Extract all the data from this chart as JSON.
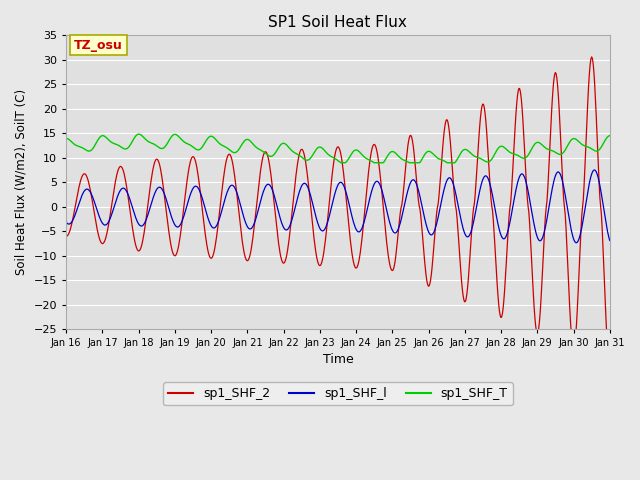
{
  "title": "SP1 Soil Heat Flux",
  "xlabel": "Time",
  "ylabel": "Soil Heat Flux (W/m2), SoilT (C)",
  "ylim": [
    -25,
    35
  ],
  "bg_color": "#e8e8e8",
  "plot_bg_color": "#e0e0e0",
  "grid_color": "#ffffff",
  "color_shf2": "#cc0000",
  "color_shf1": "#0000cc",
  "color_shft": "#00cc00",
  "legend_labels": [
    "sp1_SHF_2",
    "sp1_SHF_l",
    "sp1_SHF_T"
  ],
  "tz_label": "TZ_osu",
  "tz_box_color": "#ffffcc",
  "tz_text_color": "#cc0000",
  "tz_border_color": "#aaaa00",
  "yticks": [
    -25,
    -20,
    -15,
    -10,
    -5,
    0,
    5,
    10,
    15,
    20,
    25,
    30,
    35
  ],
  "xtick_labels": [
    "Jan 16",
    "Jan 17",
    "Jan 18",
    "Jan 19",
    "Jan 20",
    "Jan 21",
    "Jan 22",
    "Jan 23",
    "Jan 24",
    "Jan 25",
    "Jan 26",
    "Jan 27",
    "Jan 28",
    "Jan 29",
    "Jan 30",
    "Jan 31"
  ]
}
